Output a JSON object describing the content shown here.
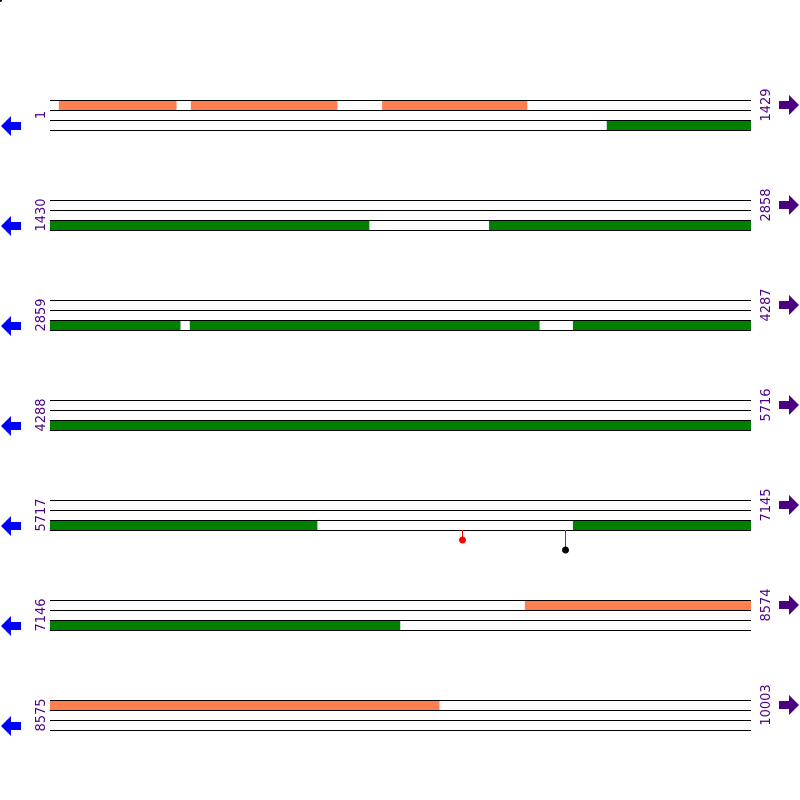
{
  "colors": {
    "orf_forward": "#ff7f50",
    "orf_reverse": "#008000",
    "line": "#000000",
    "left_arrow": "#0000ff",
    "right_arrow": "#4b0082",
    "label": "#4b0082",
    "marker_red": "#ff0000",
    "marker_black": "#000000"
  },
  "icons": {
    "left": "arrow-left-icon",
    "right": "arrow-right-icon"
  },
  "rows": [
    {
      "start": "1",
      "end": "1429",
      "top": [
        [
          19,
          258
        ],
        [
          288,
          586
        ],
        [
          678,
          973
        ]
      ],
      "bottom": [
        [
          1136,
          1429
        ]
      ],
      "markers": []
    },
    {
      "start": "1430",
      "end": "2858",
      "top": [],
      "bottom": [
        [
          1430,
          2080
        ],
        [
          2325,
          2858
        ]
      ],
      "markers": []
    },
    {
      "start": "2859",
      "end": "4287",
      "top": [],
      "bottom": [
        [
          2859,
          3124
        ],
        [
          3144,
          3856
        ],
        [
          3925,
          4287
        ]
      ],
      "markers": []
    },
    {
      "start": "4288",
      "end": "5716",
      "top": [],
      "bottom": [
        [
          4288,
          5716
        ]
      ],
      "markers": []
    },
    {
      "start": "5717",
      "end": "7145",
      "top": [],
      "bottom": [
        [
          5717,
          6261
        ],
        [
          6783,
          7145
        ]
      ],
      "markers": [
        {
          "pos": 6557,
          "color": "red",
          "length": "short"
        },
        {
          "pos": 6767,
          "color": "black",
          "length": "long"
        }
      ]
    },
    {
      "start": "7146",
      "end": "8574",
      "top": [
        [
          8114,
          8574
        ]
      ],
      "bottom": [
        [
          7146,
          7859
        ]
      ],
      "markers": []
    },
    {
      "start": "8575",
      "end": "10003",
      "top": [
        [
          8575,
          9368
        ]
      ],
      "bottom": [],
      "markers": []
    }
  ]
}
